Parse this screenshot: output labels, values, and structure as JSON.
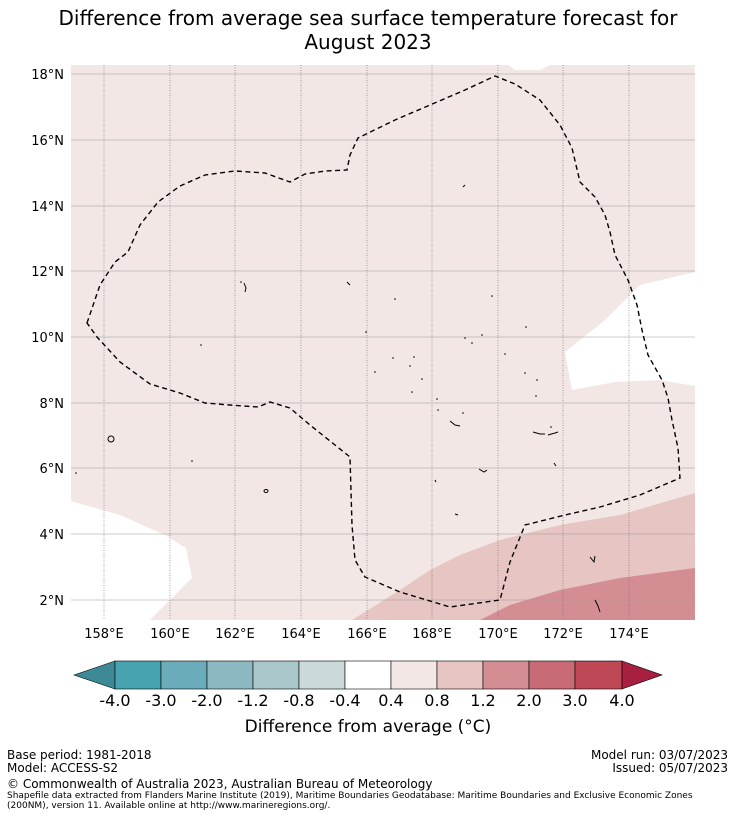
{
  "title_line1": "Difference from average sea surface temperature forecast for",
  "title_line2": "August 2023",
  "map": {
    "lon_ticks": [
      "158°E",
      "160°E",
      "162°E",
      "164°E",
      "166°E",
      "168°E",
      "170°E",
      "172°E",
      "174°E"
    ],
    "lat_ticks": [
      "18°N",
      "16°N",
      "14°N",
      "12°N",
      "10°N",
      "8°N",
      "6°N",
      "4°N",
      "2°N"
    ],
    "colors": {
      "c04_08": "#f3e7e6",
      "c08_12": "#e6c5c2",
      "c12_20": "#d48d93",
      "neutral": "#ffffff"
    }
  },
  "colorbar": {
    "ticks": [
      "-4.0",
      "-3.0",
      "-2.0",
      "-1.2",
      "-0.8",
      "-0.4",
      "0.4",
      "0.8",
      "1.2",
      "2.0",
      "3.0",
      "4.0"
    ],
    "colors": [
      "#3e8996",
      "#48a3b0",
      "#6aacb9",
      "#8cb9c1",
      "#a9c6cb",
      "#cbd9da",
      "#ffffff",
      "#f3e7e6",
      "#e6c5c2",
      "#d48d93",
      "#c86b77",
      "#bf4857",
      "#a82040"
    ],
    "label": "Difference from average (°C)"
  },
  "footer": {
    "base_period": "Base period: 1981-2018",
    "model": "Model: ACCESS-S2",
    "model_run": "Model run: 03/07/2023",
    "issued": "Issued: 05/07/2023",
    "copyright": "© Commonwealth of Australia 2023, Australian Bureau of Meteorology",
    "credit_line1": "Shapefile data extracted from Flanders Marine Institute (2019), Maritime Boundaries Geodatabase: Maritime Boundaries and Exclusive Economic Zones",
    "credit_line2": "(200NM), version 11. Available online at http://www.marineregions.org/."
  }
}
